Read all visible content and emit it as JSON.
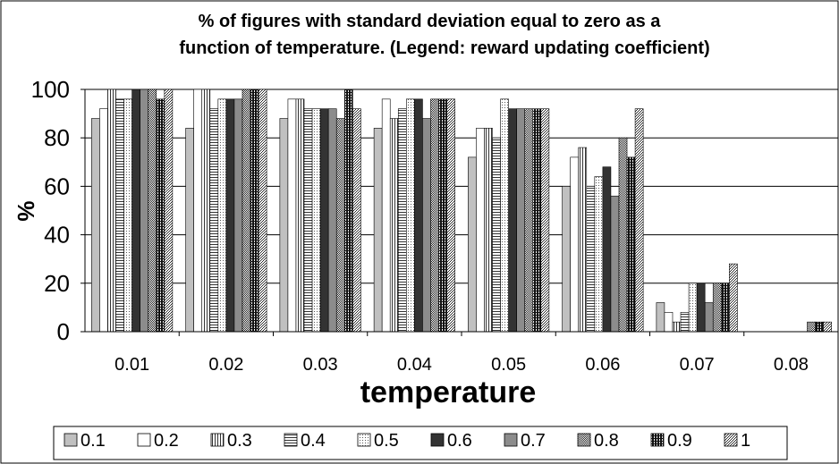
{
  "chart_data": {
    "type": "bar",
    "title": "% of figures with standard deviation equal to  zero as a",
    "subtitle": "function of temperature. (Legend: reward updating coefficient)",
    "xlabel": "temperature",
    "ylabel": "%",
    "ylim": [
      0,
      100
    ],
    "yticks": [
      "0",
      "20",
      "40",
      "60",
      "80",
      "100"
    ],
    "grid": true,
    "legend_position": "bottom",
    "categories": [
      "0.01",
      "0.02",
      "0.03",
      "0.04",
      "0.05",
      "0.06",
      "0.07",
      "0.08"
    ],
    "series": [
      {
        "name": "0.1",
        "pattern": "gray-light",
        "values": [
          88,
          84,
          88,
          84,
          72,
          60,
          12,
          0
        ]
      },
      {
        "name": "0.2",
        "pattern": "white",
        "values": [
          92,
          100,
          96,
          96,
          84,
          72,
          8,
          0
        ]
      },
      {
        "name": "0.3",
        "pattern": "vertical-lines",
        "values": [
          100,
          100,
          96,
          88,
          84,
          76,
          4,
          0
        ]
      },
      {
        "name": "0.4",
        "pattern": "horizontal-lines",
        "values": [
          96,
          92,
          92,
          92,
          80,
          60,
          8,
          0
        ]
      },
      {
        "name": "0.5",
        "pattern": "dotted-light",
        "values": [
          96,
          96,
          92,
          96,
          96,
          64,
          20,
          0
        ]
      },
      {
        "name": "0.6",
        "pattern": "black",
        "values": [
          100,
          96,
          92,
          96,
          92,
          68,
          20,
          0
        ]
      },
      {
        "name": "0.7",
        "pattern": "gray-medium",
        "values": [
          100,
          96,
          92,
          88,
          92,
          56,
          12,
          0
        ]
      },
      {
        "name": "0.8",
        "pattern": "checker",
        "values": [
          100,
          100,
          88,
          96,
          92,
          80,
          20,
          4
        ]
      },
      {
        "name": "0.9",
        "pattern": "grid-dark",
        "values": [
          96,
          100,
          100,
          96,
          92,
          72,
          20,
          4
        ]
      },
      {
        "name": "1",
        "pattern": "dotted-dense",
        "values": [
          100,
          100,
          92,
          96,
          92,
          92,
          28,
          4
        ]
      }
    ]
  }
}
